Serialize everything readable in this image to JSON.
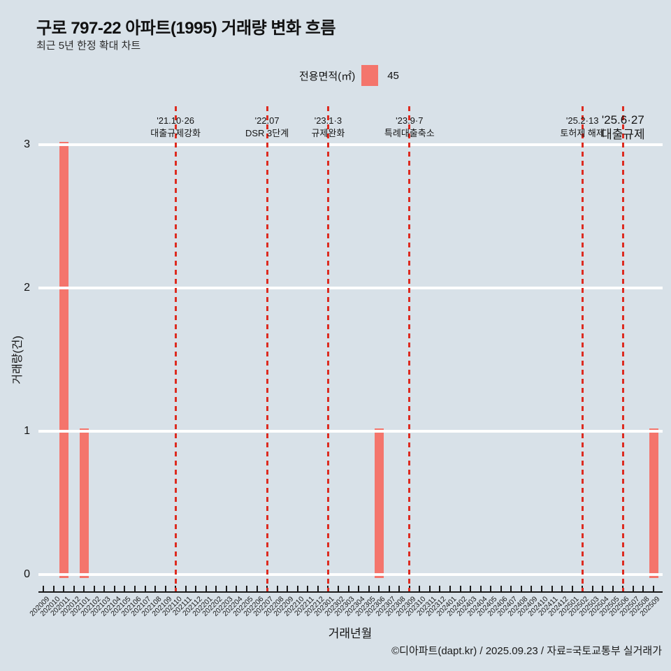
{
  "page": {
    "background": "#d8e1e8"
  },
  "header": {
    "title": "구로 797-22 아파트(1995) 거래량 변화 흐름",
    "subtitle": "최근 5년 한정 확대 차트"
  },
  "legend": {
    "label": "전용면적(㎡)",
    "value": "45",
    "swatch_color": "#f4756c"
  },
  "chart_data": {
    "type": "bar",
    "title": "구로 797-22 아파트(1995) 거래량 변화 흐름",
    "subtitle": "최근 5년 한정 확대 차트",
    "xlabel": "거래년월",
    "ylabel": "거래량(건)",
    "ylim": [
      0,
      3
    ],
    "yticks": [
      0,
      1,
      2,
      3
    ],
    "grid": "horizontal-white-lines-on",
    "legend_position": "top-center",
    "bar_color": "#f4756c",
    "vline_color": "#dd2b20",
    "categories": [
      "202009",
      "202010",
      "202011",
      "202012",
      "202101",
      "202102",
      "202103",
      "202104",
      "202105",
      "202106",
      "202107",
      "202108",
      "202109",
      "202110",
      "202111",
      "202112",
      "202201",
      "202202",
      "202203",
      "202204",
      "202205",
      "202206",
      "202207",
      "202208",
      "202209",
      "202210",
      "202211",
      "202212",
      "202301",
      "202302",
      "202303",
      "202304",
      "202305",
      "202306",
      "202307",
      "202308",
      "202309",
      "202310",
      "202311",
      "202312",
      "202401",
      "202402",
      "202403",
      "202404",
      "202405",
      "202406",
      "202407",
      "202408",
      "202409",
      "202410",
      "202411",
      "202412",
      "202501",
      "202502",
      "202503",
      "202504",
      "202505",
      "202506",
      "202507",
      "202508",
      "202509"
    ],
    "series": [
      {
        "name": "45",
        "color": "#f4756c",
        "values": [
          0,
          0,
          3,
          0,
          1,
          0,
          0,
          0,
          0,
          0,
          0,
          0,
          0,
          0,
          0,
          0,
          0,
          0,
          0,
          0,
          0,
          0,
          0,
          0,
          0,
          0,
          0,
          0,
          0,
          0,
          0,
          0,
          0,
          1,
          0,
          0,
          0,
          0,
          0,
          0,
          0,
          0,
          0,
          0,
          0,
          0,
          0,
          0,
          0,
          0,
          0,
          0,
          0,
          0,
          0,
          0,
          0,
          0,
          0,
          0,
          1
        ]
      }
    ],
    "annotations": [
      {
        "month": "202110",
        "date": "'21.10·26",
        "label": "대출규제강화",
        "emphasize": false
      },
      {
        "month": "202207",
        "date": "'22.07",
        "label": "DSR 3단계",
        "emphasize": false
      },
      {
        "month": "202301",
        "date": "'23.1·3",
        "label": "규제완화",
        "emphasize": false
      },
      {
        "month": "202309",
        "date": "'23.9·7",
        "label": "특례대출축소",
        "emphasize": false
      },
      {
        "month": "202502",
        "date": "'25.2·13",
        "label": "토허제 해제",
        "emphasize": false
      },
      {
        "month": "202506",
        "date": "'25.6·27",
        "label": "대출규제",
        "emphasize": true
      }
    ]
  },
  "footer": {
    "credit": "©디아파트(dapt.kr) / 2025.09.23 / 자료=국토교통부 실거래가"
  }
}
